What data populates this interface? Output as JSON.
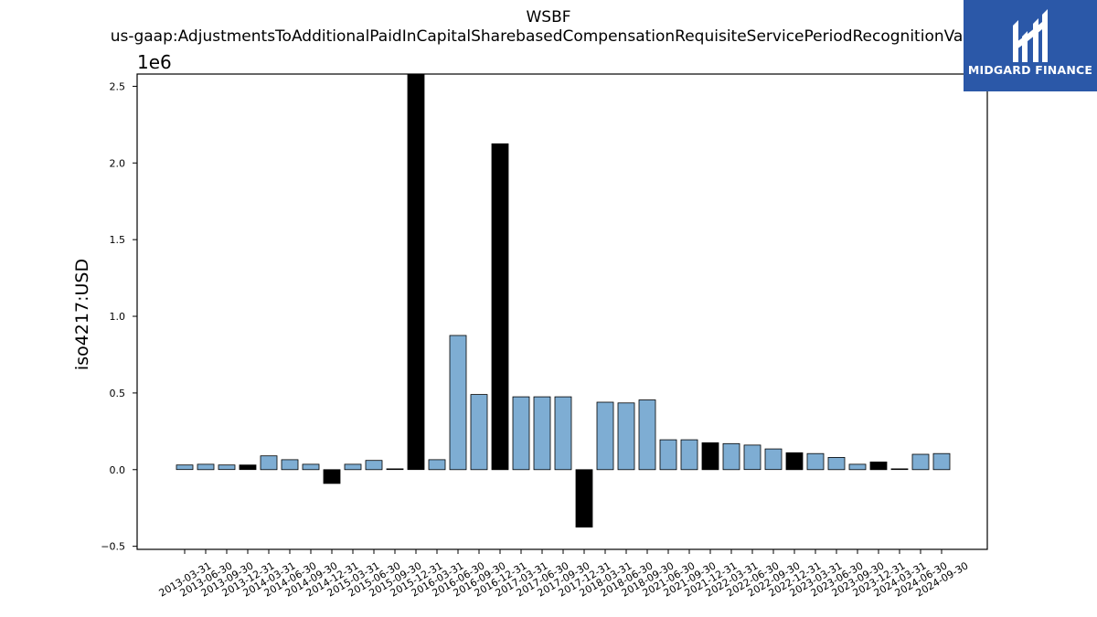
{
  "chart_data": {
    "type": "bar",
    "title": "WSBF",
    "subtitle": "us-gaap:AdjustmentsToAdditionalPaidInCapitalSharebasedCompensationRequisiteServicePeriodRecognitionValue",
    "xlabel": "",
    "ylabel": "iso4217:USD",
    "y_multiplier_label": "1e6",
    "ylim": [
      -0.52,
      2.58
    ],
    "yticks": [
      -0.5,
      0.0,
      0.5,
      1.0,
      1.5,
      2.0,
      2.5
    ],
    "ytick_labels": [
      "−0.5",
      "0.0",
      "0.5",
      "1.0",
      "1.5",
      "2.0",
      "2.5"
    ],
    "grid": false,
    "colors": {
      "quarter": "#7eadd3",
      "year_end": "#000000",
      "edge": "#000000"
    },
    "categories": [
      "2013-03-31",
      "2013-06-30",
      "2013-09-30",
      "2013-12-31",
      "2014-03-31",
      "2014-06-30",
      "2014-09-30",
      "2014-12-31",
      "2015-03-31",
      "2015-06-30",
      "2015-09-30",
      "2015-12-31",
      "2016-03-31",
      "2016-06-30",
      "2016-09-30",
      "2016-12-31",
      "2017-03-31",
      "2017-06-30",
      "2017-09-30",
      "2017-12-31",
      "2018-03-31",
      "2018-06-30",
      "2018-09-30",
      "2021-06-30",
      "2021-09-30",
      "2021-12-31",
      "2022-03-31",
      "2022-06-30",
      "2022-09-30",
      "2022-12-31",
      "2023-03-31",
      "2023-06-30",
      "2023-09-30",
      "2023-12-31",
      "2024-03-31",
      "2024-06-30",
      "2024-09-30"
    ],
    "values": [
      0.03,
      0.035,
      0.03,
      0.03,
      0.09,
      0.065,
      0.035,
      -0.09,
      0.035,
      0.06,
      0.005,
      2.6,
      0.065,
      0.875,
      0.49,
      2.125,
      0.475,
      0.475,
      0.475,
      -0.375,
      0.44,
      0.435,
      0.455,
      0.195,
      0.195,
      0.175,
      0.17,
      0.16,
      0.135,
      0.11,
      0.105,
      0.08,
      0.035,
      0.05,
      0.005,
      0.1,
      0.105
    ],
    "year_end_flags": [
      false,
      false,
      false,
      true,
      false,
      false,
      false,
      true,
      false,
      false,
      false,
      true,
      false,
      false,
      false,
      true,
      false,
      false,
      false,
      true,
      false,
      false,
      false,
      false,
      false,
      true,
      false,
      false,
      false,
      true,
      false,
      false,
      false,
      true,
      false,
      false,
      false
    ]
  },
  "watermark": {
    "text": "MIDGARD FINANCE",
    "background": "#2b58a8"
  }
}
